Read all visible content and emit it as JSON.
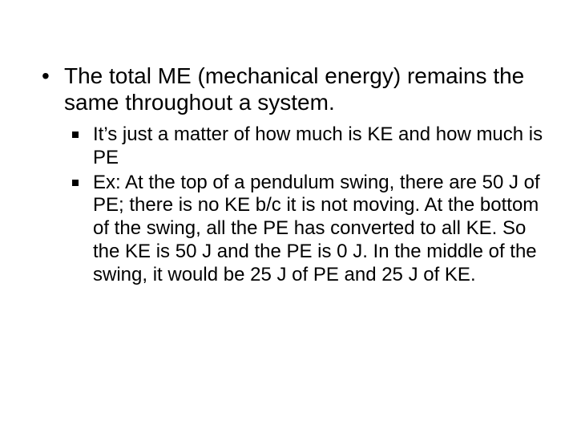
{
  "slide": {
    "background_color": "#ffffff",
    "text_color": "#000000",
    "font_family": "Arial",
    "bullets_level1": [
      {
        "text": "The total ME (mechanical energy) remains the same throughout a system.",
        "font_size_pt": 28,
        "bullet_glyph": "•",
        "children": [
          {
            "text": "It’s just a matter of how much is KE and how much is PE",
            "font_size_pt": 24,
            "bullet_shape": "filled-square"
          },
          {
            "text": "Ex:  At the top of a pendulum swing, there are 50 J of PE; there is no KE b/c it is not moving.  At the bottom of the swing, all the PE has converted to all KE.  So the KE is 50 J and the PE is 0 J.  In the middle of the swing, it would be 25 J of PE and 25 J of KE.",
            "font_size_pt": 24,
            "bullet_shape": "filled-square"
          }
        ]
      }
    ]
  }
}
